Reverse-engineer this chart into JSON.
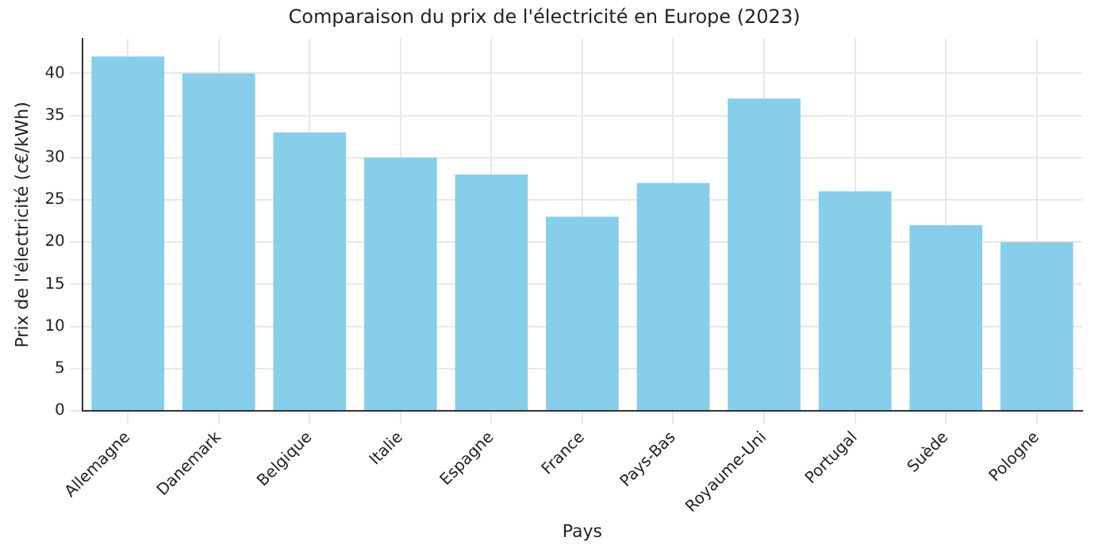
{
  "chart_data": {
    "type": "bar",
    "title": "Comparaison du prix de l'électricité en Europe (2023)",
    "xlabel": "Pays",
    "ylabel": "Prix de l'électricité (c€/kWh)",
    "categories": [
      "Allemagne",
      "Danemark",
      "Belgique",
      "Italie",
      "Espagne",
      "France",
      "Pays-Bas",
      "Royaume-Uni",
      "Portugal",
      "Suède",
      "Pologne"
    ],
    "values": [
      42,
      40,
      33,
      30,
      28,
      23,
      27,
      37,
      26,
      22,
      20
    ],
    "color": "#87ceeb",
    "ylim": [
      0,
      44.1
    ],
    "yticks": [
      0,
      5,
      10,
      15,
      20,
      25,
      30,
      35,
      40
    ],
    "grid": true
  }
}
